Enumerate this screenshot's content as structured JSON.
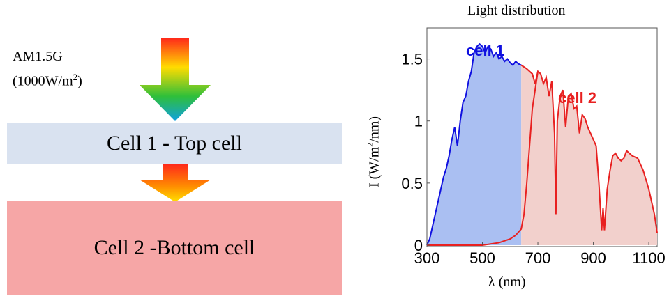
{
  "left_diagram": {
    "source_line1": "AM1.5G",
    "source_line2_pre": "(1000W/m",
    "source_line2_sup": "2",
    "source_line2_post": ")",
    "top_cell_label": "Cell 1 - Top cell",
    "bottom_cell_label": "Cell 2 -Bottom cell"
  },
  "chart_data": {
    "type": "area",
    "title": "Light distribution",
    "xlabel": "λ (nm)",
    "ylabel_pre": "I (W/m",
    "ylabel_sup": "2",
    "ylabel_post": "/nm)",
    "xlim": [
      300,
      1130
    ],
    "ylim": [
      0,
      1.75
    ],
    "xticks": [
      "300",
      "500",
      "700",
      "900",
      "1100"
    ],
    "yticks": [
      "0",
      "0.5",
      "1",
      "1.5"
    ],
    "annotations": [
      "cell 1",
      "cell 2"
    ],
    "series": [
      {
        "name": "cell 1",
        "color": "#1010e0",
        "fill": "#aabff2",
        "x": [
          300,
          310,
          320,
          330,
          340,
          350,
          360,
          370,
          380,
          390,
          400,
          410,
          420,
          430,
          440,
          450,
          460,
          470,
          480,
          490,
          500,
          510,
          520,
          530,
          540,
          550,
          560,
          570,
          580,
          590,
          600,
          610,
          620,
          630,
          640
        ],
        "y": [
          0.0,
          0.05,
          0.15,
          0.25,
          0.35,
          0.45,
          0.55,
          0.62,
          0.72,
          0.85,
          0.95,
          0.8,
          1.0,
          1.15,
          1.2,
          1.32,
          1.4,
          1.55,
          1.6,
          1.62,
          1.6,
          1.55,
          1.6,
          1.58,
          1.52,
          1.55,
          1.5,
          1.52,
          1.48,
          1.5,
          1.47,
          1.45,
          1.48,
          1.46,
          1.45
        ]
      },
      {
        "name": "cell 2",
        "color": "#e82020",
        "fill": "#f2d0cc",
        "x": [
          640,
          660,
          680,
          690,
          700,
          710,
          720,
          730,
          740,
          750,
          760,
          765,
          770,
          780,
          790,
          800,
          810,
          820,
          830,
          840,
          850,
          860,
          870,
          880,
          890,
          900,
          910,
          920,
          930,
          935,
          940,
          950,
          960,
          970,
          980,
          990,
          1000,
          1010,
          1020,
          1040,
          1060,
          1080,
          1100,
          1120,
          1130
        ],
        "y": [
          1.45,
          1.42,
          1.38,
          1.3,
          1.4,
          1.38,
          1.3,
          1.35,
          1.2,
          1.32,
          0.9,
          0.25,
          1.0,
          1.2,
          1.25,
          0.95,
          1.2,
          1.22,
          1.1,
          1.12,
          0.9,
          1.05,
          1.02,
          0.95,
          0.9,
          0.85,
          0.8,
          0.5,
          0.12,
          0.3,
          0.12,
          0.45,
          0.6,
          0.72,
          0.74,
          0.7,
          0.68,
          0.7,
          0.76,
          0.72,
          0.7,
          0.6,
          0.45,
          0.25,
          0.1
        ]
      },
      {
        "name": "",
        "color": "#e82020",
        "fill": "#f2d0cc",
        "x": [
          300,
          400,
          500,
          560,
          600,
          620,
          640,
          650,
          660,
          670,
          680,
          700
        ],
        "y": [
          0,
          0,
          0,
          0.02,
          0.05,
          0.08,
          0.13,
          0.25,
          0.5,
          0.8,
          1.1,
          1.4
        ]
      }
    ]
  }
}
